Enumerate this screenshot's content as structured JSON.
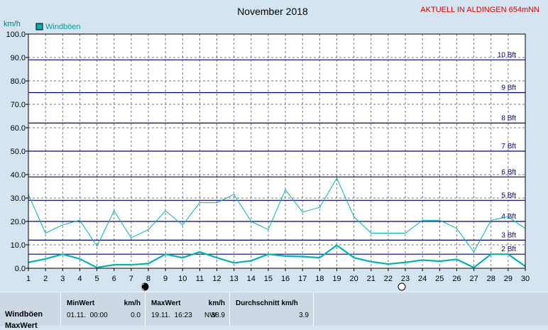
{
  "header": {
    "title": "November 2018",
    "station": "AKTUELL IN ALDINGEN 654mNN",
    "unit": "km/h"
  },
  "colors": {
    "background": "#d4e4f0",
    "plot_background": "#ffffff",
    "beaufort_line": "#000080",
    "series": "#00b4b4",
    "station_text": "#e00000",
    "unit_text": "#008080",
    "legend_text": "#00a0a0"
  },
  "chart_data": {
    "type": "line",
    "title": "November 2018",
    "ylabel": "km/h",
    "ylim": [
      0,
      100
    ],
    "xlim": [
      1,
      30
    ],
    "grid": true,
    "legend_position": "top-left",
    "x": [
      1,
      2,
      3,
      4,
      5,
      6,
      7,
      8,
      9,
      10,
      11,
      12,
      13,
      14,
      15,
      16,
      17,
      18,
      19,
      20,
      21,
      22,
      23,
      24,
      25,
      26,
      27,
      28,
      29,
      30
    ],
    "x_tick_labels": [
      "1",
      "2",
      "3",
      "4",
      "5",
      "6",
      "7",
      "8",
      "9",
      "10",
      "11",
      "12",
      "13",
      "14",
      "15",
      "16",
      "17",
      "18",
      "19",
      "20",
      "21",
      "22",
      "23",
      "24",
      "25",
      "26",
      "27",
      "28",
      "29",
      "30"
    ],
    "y_ticks": [
      0,
      10,
      20,
      30,
      40,
      50,
      60,
      70,
      80,
      90,
      100
    ],
    "y_tick_labels": [
      "0.0",
      "10.0",
      "20.0",
      "30.0",
      "40.0",
      "50.0",
      "60.0",
      "70.0",
      "80.0",
      "90.0",
      "100.0"
    ],
    "series": [
      {
        "name": "Windböen",
        "role": "max",
        "values": [
          31.5,
          15,
          18.5,
          20.5,
          9.5,
          24.5,
          13,
          16.5,
          24.5,
          18.5,
          28,
          28,
          31.5,
          20,
          16.5,
          33.5,
          24,
          26,
          38.5,
          22,
          15,
          15,
          15,
          20.5,
          20.5,
          17,
          7,
          20.5,
          22,
          17
        ]
      },
      {
        "name": "Windböen",
        "role": "mean",
        "values": [
          2.5,
          4,
          6,
          4,
          0.3,
          1.5,
          1.5,
          2,
          6,
          4.5,
          7,
          4.5,
          2.3,
          3.2,
          6,
          5.2,
          5,
          4.5,
          9.8,
          4.5,
          2.8,
          1.8,
          2.5,
          3.5,
          3,
          3.8,
          0.3,
          6,
          6,
          0.8
        ]
      }
    ],
    "beaufort_levels": [
      {
        "label": "2 Bft",
        "value": 6
      },
      {
        "label": "3 Bft",
        "value": 12
      },
      {
        "label": "4 Bft",
        "value": 20
      },
      {
        "label": "5 Bft",
        "value": 29
      },
      {
        "label": "6 Bft",
        "value": 39
      },
      {
        "label": "7 Bft",
        "value": 50
      },
      {
        "label": "8 Bft",
        "value": 62
      },
      {
        "label": "9 Bft",
        "value": 75
      },
      {
        "label": "10 Bft",
        "value": 89
      }
    ],
    "moon_phases": [
      {
        "day": 8,
        "phase": "new"
      },
      {
        "day": 23,
        "phase": "full"
      }
    ]
  },
  "legend": {
    "label": "Windböen"
  },
  "stats_table": {
    "row_label": "Windböen",
    "row_label_2": "MaxWert",
    "min_header": "MinWert",
    "min_unit": "km/h",
    "min_time": "01.11.  00:00",
    "min_value": "0.0",
    "max_header": "MaxWert",
    "max_unit": "km/h",
    "max_time": "19.11.  16:23",
    "max_dir": "NW",
    "max_value": "38.9",
    "avg_header": "Durchschnitt km/h",
    "avg_value": "3.9"
  }
}
